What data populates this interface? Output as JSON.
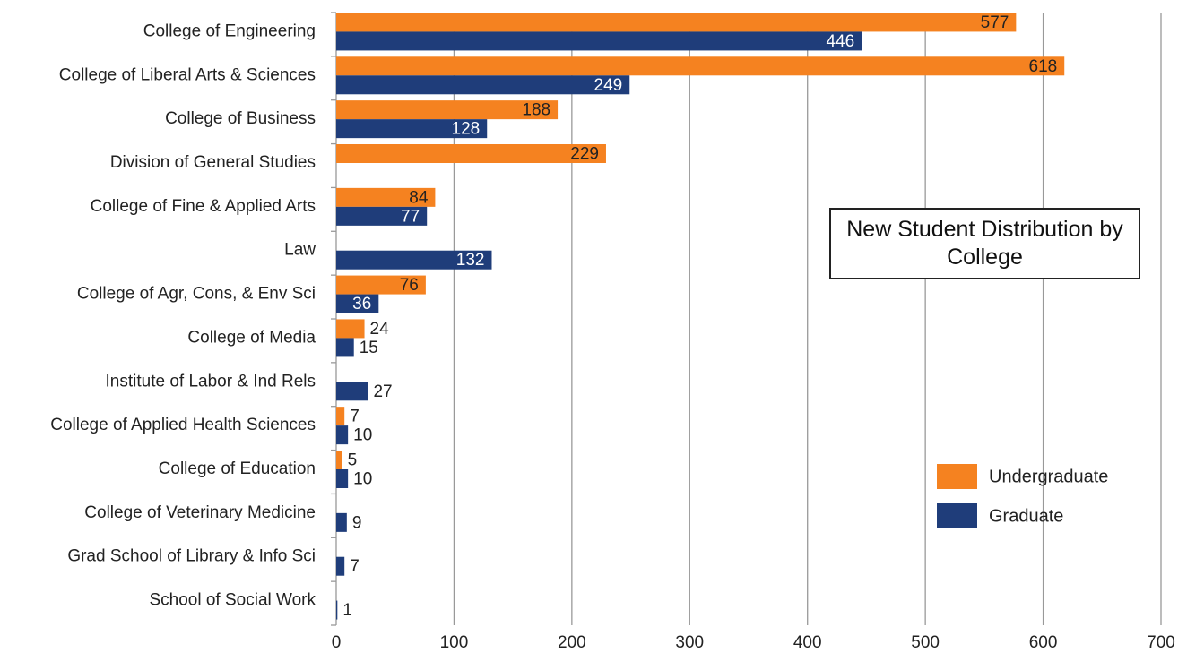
{
  "chart_data": {
    "type": "barh",
    "title": "New Student Distribution by College",
    "categories": [
      "College of Engineering",
      "College of Liberal Arts & Sciences",
      "College of Business",
      "Division of General Studies",
      "College of Fine & Applied Arts",
      "Law",
      "College of Agr, Cons, & Env Sci",
      "College of Media",
      "Institute of Labor & Ind Rels",
      "College of Applied Health Sciences",
      "College of Education",
      "College of Veterinary Medicine",
      "Grad School of Library & Info Sci",
      "School of Social Work"
    ],
    "series": [
      {
        "name": "Undergraduate",
        "color": "#f58220",
        "values": [
          577,
          618,
          188,
          229,
          84,
          null,
          76,
          24,
          null,
          7,
          5,
          null,
          null,
          null
        ]
      },
      {
        "name": "Graduate",
        "color": "#1f3d7a",
        "values": [
          446,
          249,
          128,
          null,
          77,
          132,
          36,
          15,
          27,
          10,
          10,
          9,
          7,
          1
        ]
      }
    ],
    "xlim": [
      0,
      700
    ],
    "xticks": [
      0,
      100,
      200,
      300,
      400,
      500,
      600,
      700
    ],
    "grid": true,
    "legend": "right"
  }
}
